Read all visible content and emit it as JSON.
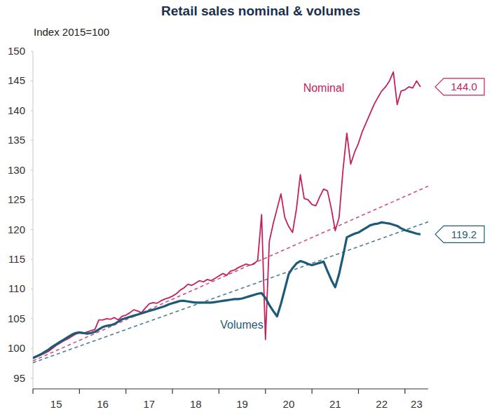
{
  "chart_data": {
    "type": "line",
    "title": "Retail sales nominal & volumes",
    "subtitle": "Index 2015=100",
    "x": [
      15,
      15.083,
      15.167,
      15.25,
      15.333,
      15.417,
      15.5,
      15.583,
      15.667,
      15.75,
      15.833,
      15.917,
      16,
      16.083,
      16.167,
      16.25,
      16.333,
      16.417,
      16.5,
      16.583,
      16.667,
      16.75,
      16.833,
      16.917,
      17,
      17.083,
      17.167,
      17.25,
      17.333,
      17.417,
      17.5,
      17.583,
      17.667,
      17.75,
      17.833,
      17.917,
      18,
      18.083,
      18.167,
      18.25,
      18.333,
      18.417,
      18.5,
      18.583,
      18.667,
      18.75,
      18.833,
      18.917,
      19,
      19.083,
      19.167,
      19.25,
      19.333,
      19.417,
      19.5,
      19.583,
      19.667,
      19.75,
      19.833,
      19.917,
      20,
      20.083,
      20.167,
      20.25,
      20.333,
      20.417,
      20.5,
      20.583,
      20.667,
      20.75,
      20.833,
      20.917,
      21,
      21.083,
      21.167,
      21.25,
      21.333,
      21.417,
      21.5,
      21.583,
      21.667,
      21.75,
      21.833,
      21.917,
      22,
      22.083,
      22.167,
      22.25,
      22.333,
      22.417,
      22.5,
      22.583,
      22.667,
      22.75,
      22.833,
      22.917,
      23,
      23.083,
      23.167,
      23.25,
      23.333
    ],
    "series": [
      {
        "name": "Nominal",
        "color": "#c4215c",
        "line_style": "solid",
        "values": [
          98.3,
          98.6,
          98.9,
          99.2,
          99.5,
          100.0,
          100.5,
          100.9,
          101.3,
          101.6,
          102.0,
          102.4,
          102.6,
          102.5,
          102.8,
          103.0,
          103.2,
          104.8,
          104.8,
          105.0,
          104.9,
          105.2,
          104.8,
          105.4,
          105.6,
          106.0,
          106.5,
          106.3,
          106.0,
          106.8,
          107.5,
          107.7,
          107.6,
          108.0,
          108.3,
          108.5,
          108.8,
          109.2,
          109.8,
          110.2,
          110.8,
          110.6,
          111.0,
          111.4,
          111.2,
          111.6,
          111.4,
          111.8,
          112.2,
          112.6,
          112.3,
          113.0,
          113.2,
          113.6,
          113.9,
          114.2,
          114.0,
          114.2,
          114.8,
          122.5,
          101.5,
          118.0,
          121.0,
          123.5,
          126.0,
          122.0,
          120.5,
          119.5,
          123.5,
          129.2,
          125.2,
          125.0,
          124.2,
          124.0,
          125.5,
          126.8,
          126.5,
          123.5,
          119.8,
          122.0,
          130.0,
          136.2,
          131.0,
          133.0,
          134.5,
          136.5,
          138.0,
          139.5,
          141.0,
          142.2,
          143.3,
          144.0,
          145.0,
          146.5,
          141.0,
          143.3,
          143.5,
          144.0,
          143.8,
          145.0,
          144.0
        ]
      },
      {
        "name": "Volumes",
        "color": "#1d5a78",
        "line_style": "solid",
        "values": [
          98.4,
          98.7,
          99.0,
          99.4,
          99.8,
          100.3,
          100.7,
          101.1,
          101.5,
          101.9,
          102.3,
          102.6,
          102.7,
          102.6,
          102.5,
          102.6,
          102.8,
          103.2,
          103.6,
          103.8,
          103.9,
          104.1,
          104.5,
          104.9,
          105.1,
          105.3,
          105.5,
          105.7,
          105.9,
          106.1,
          106.3,
          106.5,
          106.7,
          106.9,
          107.1,
          107.4,
          107.6,
          107.8,
          108.0,
          108.0,
          107.9,
          107.8,
          107.7,
          107.7,
          107.7,
          107.7,
          107.7,
          107.8,
          107.9,
          108.0,
          108.1,
          108.2,
          108.3,
          108.3,
          108.4,
          108.6,
          108.8,
          109.0,
          109.2,
          109.3,
          108.5,
          107.3,
          106.3,
          105.4,
          107.5,
          110.0,
          112.5,
          113.5,
          114.3,
          114.7,
          114.5,
          114.2,
          114.0,
          114.2,
          114.4,
          114.6,
          113.0,
          111.5,
          110.3,
          112.5,
          115.5,
          118.7,
          119.0,
          119.3,
          119.5,
          119.9,
          120.3,
          120.7,
          120.9,
          121.0,
          121.2,
          121.1,
          121.0,
          120.8,
          120.6,
          120.2,
          119.9,
          119.7,
          119.5,
          119.3,
          119.2
        ]
      },
      {
        "color": "#d0507f",
        "line_style": "dashed",
        "x": [
          15,
          23.5
        ],
        "values": [
          97.9,
          127.3
        ]
      },
      {
        "color": "#4d7d93",
        "line_style": "dashed",
        "x": [
          15,
          23.5
        ],
        "values": [
          97.6,
          121.3
        ]
      }
    ],
    "annotations": [
      {
        "text": "144.0",
        "y": 144.0,
        "color": "#c4215c"
      },
      {
        "text": "119.2",
        "y": 119.2,
        "color": "#1d5a78"
      }
    ],
    "xlim": [
      15,
      23.5
    ],
    "xticks": [
      15,
      16,
      17,
      18,
      19,
      20,
      21,
      22,
      23
    ],
    "ylim": [
      93.2,
      150
    ],
    "yticks": [
      95,
      100,
      105,
      110,
      115,
      120,
      125,
      130,
      135,
      140,
      145,
      150
    ],
    "grid": false
  }
}
